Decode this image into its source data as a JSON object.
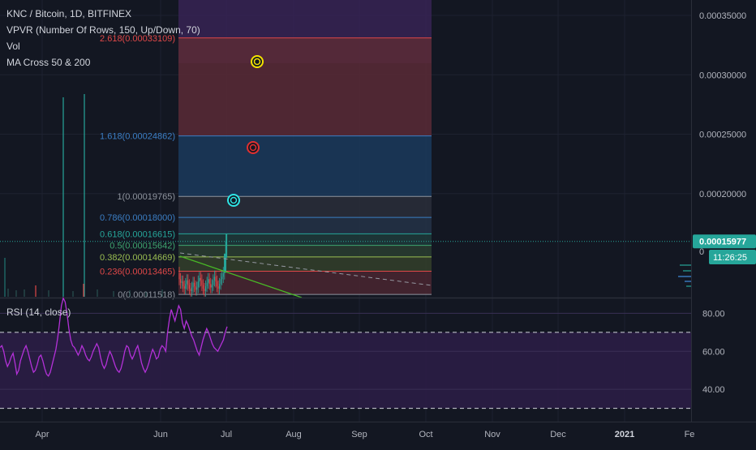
{
  "header": {
    "symbol_line": "KNC / Bitcoin, 1D, BITFINEX",
    "indicators": [
      "VPVR (Number Of Rows, 150, Up/Down, 70)",
      "Vol",
      "MA Cross 50 & 200"
    ]
  },
  "rsi_panel": {
    "label": "RSI (14, close)"
  },
  "colors": {
    "background": "#131722",
    "rsi_line": "#b331d8",
    "rsi_band": "#2b1d45",
    "price_label": "#26a69a",
    "fib_red": "#e04848",
    "fib_blue": "#3b7ec4",
    "fib_green": "#3ea56f",
    "ma_green": "#48b826"
  },
  "chart_data": [
    {
      "type": "line",
      "name": "price",
      "yaxis": {
        "ticks": [
          "0.00035000",
          "0.00030000",
          "0.00025000",
          "0.00020000"
        ],
        "tick_values": [
          0.00035,
          0.0003,
          0.00025,
          0.0002
        ]
      },
      "ylim": [
        0.0001125,
        0.000363
      ],
      "xaxis": {
        "ticks": [
          "Apr",
          "Jun",
          "Jul",
          "Aug",
          "Sep",
          "Oct",
          "Nov",
          "Dec",
          "2021",
          "Fe"
        ]
      },
      "current_price": {
        "label": "0.00015977",
        "value": 0.00015977
      },
      "countdown": "11:26:25",
      "fib_levels": [
        {
          "label": "2.618(0.00033109)",
          "value": 0.00033109,
          "color": "#e04848"
        },
        {
          "label": "1.618(0.00024862)",
          "value": 0.00024862,
          "color": "#3b7ec4"
        },
        {
          "label": "1(0.00019765)",
          "value": 0.00019765,
          "color": "#8f949e"
        },
        {
          "label": "0.786(0.00018000)",
          "value": 0.00018,
          "color": "#3b7ec4"
        },
        {
          "label": "0.618(0.00016615)",
          "value": 0.00016615,
          "color": "#26a69a"
        },
        {
          "label": "0.5(0.00015642)",
          "value": 0.00015642,
          "color": "#3ea56f"
        },
        {
          "label": "0.382(0.00014669)",
          "value": 0.00014669,
          "color": "#9bbf52"
        },
        {
          "label": "0.236(0.00013465)",
          "value": 0.00013465,
          "color": "#e04848"
        },
        {
          "label": "0(0.00011518)",
          "value": 0.00011518,
          "color": "#8f949e"
        }
      ]
    },
    {
      "type": "line",
      "name": "rsi",
      "ylim": [
        23,
        87
      ],
      "y_ticks": [
        "80.00",
        "60.00",
        "40.00"
      ],
      "y_tick_values": [
        80,
        60,
        40
      ],
      "band": [
        30,
        70
      ],
      "series_y": [
        62,
        63,
        60,
        55,
        52,
        54,
        57,
        59,
        54,
        48,
        50,
        55,
        58,
        61,
        63,
        60,
        56,
        52,
        49,
        50,
        53,
        57,
        58,
        55,
        51,
        48,
        47,
        49,
        53,
        57,
        61,
        67,
        75,
        84,
        88,
        86,
        80,
        72,
        66,
        63,
        62,
        60,
        58,
        60,
        63,
        61,
        58,
        56,
        55,
        57,
        60,
        62,
        64,
        62,
        57,
        53,
        51,
        53,
        57,
        60,
        58,
        55,
        52,
        50,
        49,
        51,
        55,
        60,
        63,
        62,
        58,
        56,
        58,
        61,
        63,
        59,
        54,
        51,
        49,
        51,
        54,
        58,
        61,
        59,
        56,
        57,
        61,
        63,
        62,
        60,
        70,
        77,
        82,
        79,
        76,
        80,
        84,
        82,
        75,
        72,
        76,
        74,
        71,
        68,
        66,
        63,
        60,
        58,
        62,
        66,
        69,
        72,
        70,
        67,
        64,
        62,
        61,
        60,
        62,
        64,
        66,
        70,
        73
      ]
    }
  ]
}
